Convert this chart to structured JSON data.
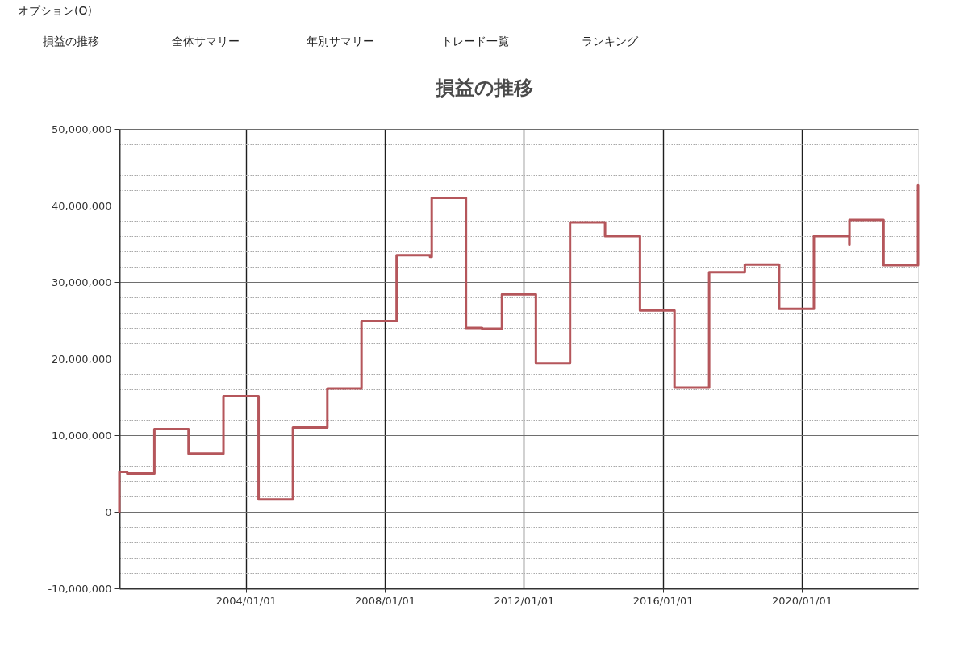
{
  "chart_data": {
    "type": "step",
    "title": "損益の推移",
    "annotations": [
      "オプション(O)",
      "損益の推移",
      "全体サマリー",
      "年別サマリー",
      "トレード一覧",
      "ランキング"
    ],
    "x": [
      "2000-05-12",
      "2000-05-12",
      "2000-08-02",
      "2001-05-15",
      "2002-05-09",
      "2003-05-11",
      "2004-05-14",
      "2005-05-10",
      "2006-05-07",
      "2007-05-01",
      "2008-05-04",
      "2009-04-20",
      "2009-05-08",
      "2010-05-03",
      "2010-10-20",
      "2011-05-16",
      "2012-05-07",
      "2013-05-01",
      "2014-05-04",
      "2015-05-06",
      "2016-05-03",
      "2017-05-02",
      "2018-05-12",
      "2019-05-08",
      "2020-05-07",
      "2021-05-14",
      "2021-05-16",
      "2022-05-09",
      "2023-05-06"
    ],
    "series": [
      {
        "color": "#b5565b",
        "values": [
          0,
          5200000,
          5000000,
          10800000,
          7600000,
          15100000,
          1600000,
          11000000,
          16100000,
          24900000,
          33500000,
          33300000,
          41000000,
          24000000,
          23900000,
          28400000,
          19400000,
          37800000,
          36000000,
          26300000,
          16200000,
          31300000,
          32300000,
          26500000,
          36000000,
          34900000,
          38100000,
          32200000,
          42700000
        ]
      }
    ],
    "xlim": [
      "2000-05-12",
      "2023-05-06"
    ],
    "xticks": [
      {
        "value": "2004-01-01",
        "label": "2004/01/01"
      },
      {
        "value": "2008-01-01",
        "label": "2008/01/01"
      },
      {
        "value": "2012-01-01",
        "label": "2012/01/01"
      },
      {
        "value": "2016-01-01",
        "label": "2016/01/01"
      },
      {
        "value": "2020-01-01",
        "label": "2020/01/01"
      }
    ],
    "ylim": [
      -10000000,
      50000000
    ],
    "yticks": [
      {
        "value": -10000000,
        "label": "-10,000,000"
      },
      {
        "value": -8000000,
        "label": null
      },
      {
        "value": -6000000,
        "label": null
      },
      {
        "value": -4000000,
        "label": null
      },
      {
        "value": -2000000,
        "label": null
      },
      {
        "value": 0,
        "label": "0"
      },
      {
        "value": 2000000,
        "label": null
      },
      {
        "value": 4000000,
        "label": null
      },
      {
        "value": 6000000,
        "label": null
      },
      {
        "value": 8000000,
        "label": null
      },
      {
        "value": 10000000,
        "label": "10,000,000"
      },
      {
        "value": 12000000,
        "label": null
      },
      {
        "value": 14000000,
        "label": null
      },
      {
        "value": 16000000,
        "label": null
      },
      {
        "value": 18000000,
        "label": null
      },
      {
        "value": 20000000,
        "label": "20,000,000"
      },
      {
        "value": 22000000,
        "label": null
      },
      {
        "value": 24000000,
        "label": null
      },
      {
        "value": 26000000,
        "label": null
      },
      {
        "value": 28000000,
        "label": null
      },
      {
        "value": 30000000,
        "label": "30,000,000"
      },
      {
        "value": 32000000,
        "label": null
      },
      {
        "value": 34000000,
        "label": null
      },
      {
        "value": 36000000,
        "label": null
      },
      {
        "value": 38000000,
        "label": null
      },
      {
        "value": 40000000,
        "label": "40,000,000"
      },
      {
        "value": 42000000,
        "label": null
      },
      {
        "value": 44000000,
        "label": null
      },
      {
        "value": 46000000,
        "label": null
      },
      {
        "value": 48000000,
        "label": null
      },
      {
        "value": 50000000,
        "label": "50,000,000"
      }
    ],
    "grid": true
  }
}
